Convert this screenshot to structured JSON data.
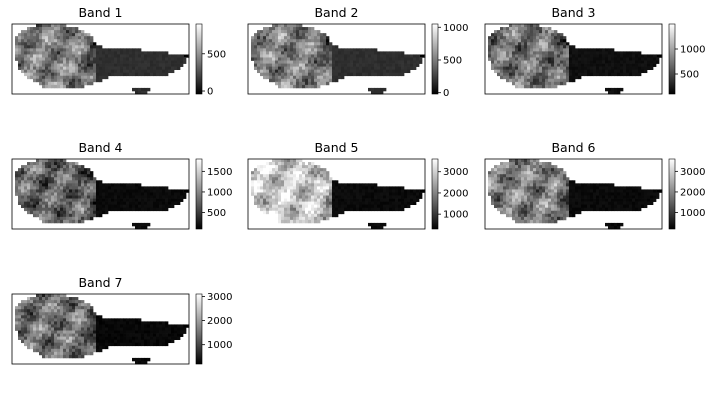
{
  "chart_data": [
    {
      "type": "heatmap",
      "title": "Band 1",
      "colormap": "gray",
      "colorbar_ticks": [
        "0",
        "500"
      ],
      "colorbar_tick_values": [
        0,
        500
      ],
      "colorbar_range": [
        -40,
        900
      ],
      "land_level": 0.5,
      "east_level": 0.18
    },
    {
      "type": "heatmap",
      "title": "Band 2",
      "colormap": "gray",
      "colorbar_ticks": [
        "0",
        "500",
        "1000"
      ],
      "colorbar_tick_values": [
        0,
        500,
        1000
      ],
      "colorbar_range": [
        -20,
        1050
      ],
      "land_level": 0.5,
      "east_level": 0.18
    },
    {
      "type": "heatmap",
      "title": "Band 3",
      "colormap": "gray",
      "colorbar_ticks": [
        "500",
        "1000"
      ],
      "colorbar_tick_values": [
        500,
        1000
      ],
      "colorbar_range": [
        100,
        1500
      ],
      "land_level": 0.45,
      "east_level": 0.06
    },
    {
      "type": "heatmap",
      "title": "Band 4",
      "colormap": "gray",
      "colorbar_ticks": [
        "500",
        "1000",
        "1500"
      ],
      "colorbar_tick_values": [
        500,
        1000,
        1500
      ],
      "colorbar_range": [
        100,
        1800
      ],
      "land_level": 0.4,
      "east_level": 0.04
    },
    {
      "type": "heatmap",
      "title": "Band 5",
      "colormap": "gray",
      "colorbar_ticks": [
        "1000",
        "2000",
        "3000"
      ],
      "colorbar_tick_values": [
        1000,
        2000,
        3000
      ],
      "colorbar_range": [
        300,
        3600
      ],
      "land_level": 0.78,
      "east_level": 0.04
    },
    {
      "type": "heatmap",
      "title": "Band 6",
      "colormap": "gray",
      "colorbar_ticks": [
        "1000",
        "2000",
        "3000"
      ],
      "colorbar_tick_values": [
        1000,
        2000,
        3000
      ],
      "colorbar_range": [
        200,
        3600
      ],
      "land_level": 0.5,
      "east_level": 0.04
    },
    {
      "type": "heatmap",
      "title": "Band 7",
      "colormap": "gray",
      "colorbar_ticks": [
        "1000",
        "2000",
        "3000"
      ],
      "colorbar_tick_values": [
        1000,
        2000,
        3000
      ],
      "colorbar_range": [
        200,
        3100
      ],
      "land_level": 0.45,
      "east_level": 0.03
    }
  ]
}
